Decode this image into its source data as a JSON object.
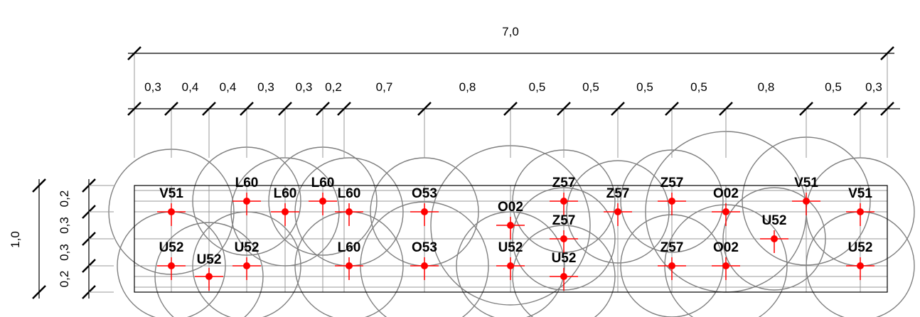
{
  "top_dims": {
    "overall": "7,0",
    "segments": [
      "0,3",
      "0,4",
      "0,4",
      "0,3",
      "0,3",
      "0,2",
      "0,7",
      "0,8",
      "0,5",
      "0,5",
      "0,5",
      "0,5",
      "0,8",
      "0,5",
      "0,3"
    ]
  },
  "side_dims": {
    "overall": "1,0",
    "segments": [
      "0,2",
      "0,3",
      "0,3",
      "0,2"
    ]
  },
  "colors": {
    "line": "#000000",
    "grid": "#9a9a9a",
    "circle": "#808080",
    "point": "#ff0000",
    "label": "#000000"
  },
  "points": [
    {
      "label": "V51"
    },
    {
      "label": "U52"
    },
    {
      "label": "U52"
    },
    {
      "label": "L60"
    },
    {
      "label": "U52"
    },
    {
      "label": "L60"
    },
    {
      "label": "L60"
    },
    {
      "label": "L60"
    },
    {
      "label": "L60"
    },
    {
      "label": "O53"
    },
    {
      "label": "O53"
    },
    {
      "label": "O02"
    },
    {
      "label": "U52"
    },
    {
      "label": "Z57"
    },
    {
      "label": "Z57"
    },
    {
      "label": "U52"
    },
    {
      "label": "Z57"
    },
    {
      "label": "Z57"
    },
    {
      "label": "Z57"
    },
    {
      "label": "O02"
    },
    {
      "label": "O02"
    },
    {
      "label": "U52"
    },
    {
      "label": "V51"
    },
    {
      "label": "V51"
    },
    {
      "label": "U52"
    }
  ]
}
